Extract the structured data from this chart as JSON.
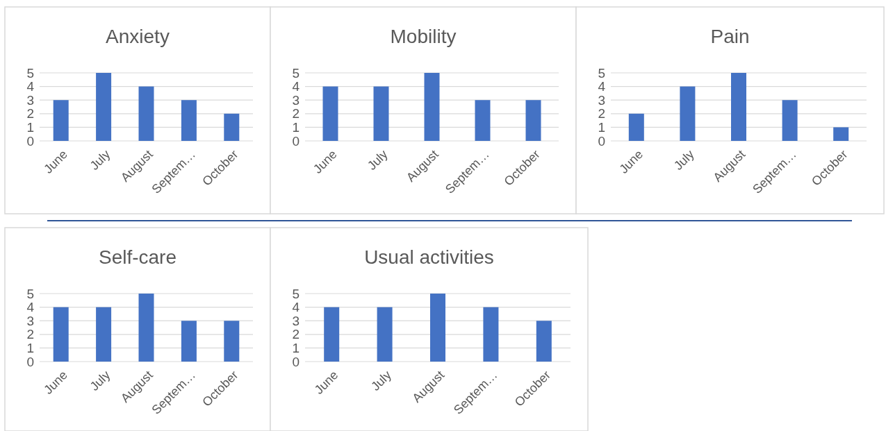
{
  "chart_data": [
    {
      "type": "bar",
      "title": "Anxiety",
      "categories": [
        "June",
        "July",
        "August",
        "Septem…",
        "October"
      ],
      "values": [
        3,
        5,
        4,
        3,
        2
      ],
      "color": "#4472c4",
      "ylim": [
        0,
        5
      ],
      "yticks": [
        0,
        1,
        2,
        3,
        4,
        5
      ],
      "grid": "y"
    },
    {
      "type": "bar",
      "title": "Mobility",
      "categories": [
        "June",
        "July",
        "August",
        "Septem…",
        "October"
      ],
      "values": [
        4,
        4,
        5,
        3,
        3
      ],
      "color": "#4472c4",
      "ylim": [
        0,
        5
      ],
      "yticks": [
        0,
        1,
        2,
        3,
        4,
        5
      ],
      "grid": "y"
    },
    {
      "type": "bar",
      "title": "Pain",
      "categories": [
        "June",
        "July",
        "August",
        "Septem…",
        "October"
      ],
      "values": [
        2,
        4,
        5,
        3,
        1
      ],
      "color": "#4472c4",
      "ylim": [
        0,
        5
      ],
      "yticks": [
        0,
        1,
        2,
        3,
        4,
        5
      ],
      "grid": "y"
    },
    {
      "type": "bar",
      "title": "Self-care",
      "categories": [
        "June",
        "July",
        "August",
        "Septem…",
        "October"
      ],
      "values": [
        4,
        4,
        5,
        3,
        3
      ],
      "color": "#4472c4",
      "ylim": [
        0,
        5
      ],
      "yticks": [
        0,
        1,
        2,
        3,
        4,
        5
      ],
      "grid": "y"
    },
    {
      "type": "bar",
      "title": "Usual activities",
      "categories": [
        "June",
        "July",
        "August",
        "Septem…",
        "October"
      ],
      "values": [
        4,
        4,
        5,
        4,
        3
      ],
      "color": "#4472c4",
      "ylim": [
        0,
        5
      ],
      "yticks": [
        0,
        1,
        2,
        3,
        4,
        5
      ],
      "grid": "y"
    }
  ]
}
